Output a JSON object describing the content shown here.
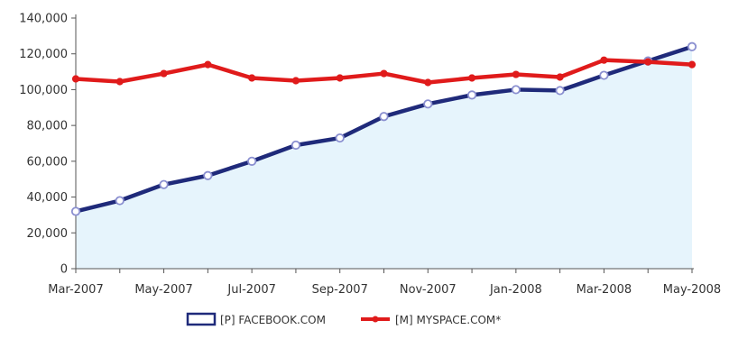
{
  "chart_data": {
    "type": "line",
    "title": "",
    "xlabel": "",
    "ylabel": "",
    "ylim": [
      0,
      140000
    ],
    "grid": false,
    "legend_position": "bottom",
    "categories": [
      "Mar-2007",
      "Apr-2007",
      "May-2007",
      "Jun-2007",
      "Jul-2007",
      "Aug-2007",
      "Sep-2007",
      "Oct-2007",
      "Nov-2007",
      "Dec-2007",
      "Jan-2008",
      "Feb-2008",
      "Mar-2008",
      "Apr-2008",
      "May-2008"
    ],
    "x_tick_labels": [
      "Mar-2007",
      "May-2007",
      "Jul-2007",
      "Sep-2007",
      "Nov-2007",
      "Jan-2008",
      "Mar-2008",
      "May-2008"
    ],
    "y_ticks": [
      0,
      20000,
      40000,
      60000,
      80000,
      100000,
      120000,
      140000
    ],
    "y_tick_labels": [
      "0",
      "20,000",
      "40,000",
      "60,000",
      "80,000",
      "100,000",
      "120,000",
      "140,000"
    ],
    "series": [
      {
        "name": "[P] FACEBOOK.COM",
        "color": "#1f2a7a",
        "marker_fill": "#ffffff",
        "area_fill": "#e6f4fc",
        "values": [
          32000,
          38000,
          47000,
          52000,
          60000,
          69000,
          73000,
          85000,
          92000,
          97000,
          100000,
          99500,
          108000,
          116000,
          124000
        ]
      },
      {
        "name": "[M] MYSPACE.COM*",
        "color": "#e01b1b",
        "marker_fill": "#e01b1b",
        "values": [
          106000,
          104500,
          109000,
          114000,
          106500,
          105000,
          106500,
          109000,
          104000,
          106500,
          108500,
          107000,
          116500,
          115500,
          114000
        ]
      }
    ]
  }
}
